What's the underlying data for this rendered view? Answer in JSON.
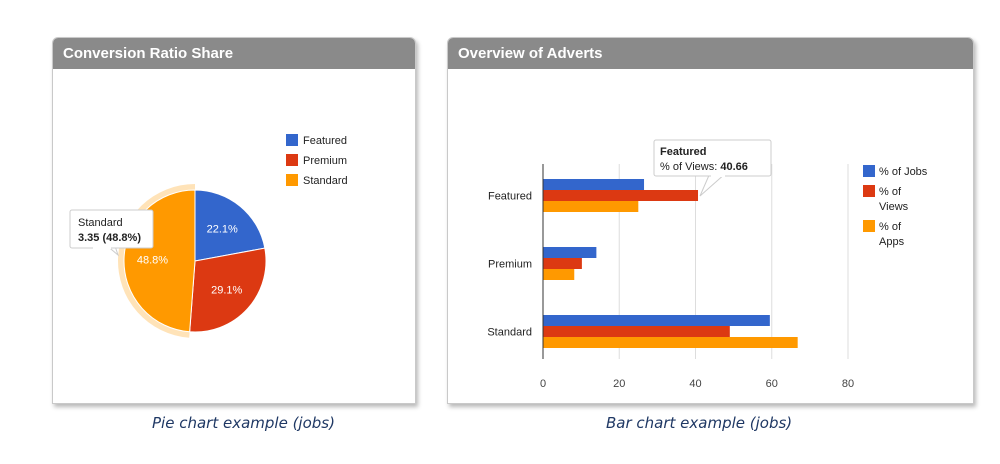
{
  "colors": {
    "featured": "#3366cc",
    "premium": "#dc3912",
    "standard": "#ff9900",
    "header": "#8a8a8a",
    "caption": "#1f3864"
  },
  "pie_panel": {
    "title": "Conversion Ratio Share",
    "caption": "Pie chart example (jobs)",
    "tooltip": {
      "label": "Standard",
      "value": "3.35 (48.8%)"
    }
  },
  "bar_panel": {
    "title": "Overview of Adverts",
    "caption": "Bar chart example (jobs)",
    "tooltip": {
      "label": "Featured",
      "metric": "% of Views: ",
      "value": "40.66"
    }
  },
  "chart_data": [
    {
      "type": "pie",
      "title": "Conversion Ratio Share",
      "categories": [
        "Featured",
        "Premium",
        "Standard"
      ],
      "values": [
        22.1,
        29.1,
        48.8
      ],
      "labels": [
        "22.1%",
        "29.1%",
        "48.8%"
      ],
      "highlighted": "Standard",
      "legend": {
        "position": "right",
        "entries": [
          "Featured",
          "Premium",
          "Standard"
        ]
      }
    },
    {
      "type": "bar",
      "orientation": "horizontal",
      "title": "Overview of Adverts",
      "categories": [
        "Featured",
        "Premium",
        "Standard"
      ],
      "series": [
        {
          "name": "% of Jobs",
          "values": [
            26.5,
            14,
            59.5
          ]
        },
        {
          "name": "% of Views",
          "values": [
            40.66,
            10.2,
            49
          ]
        },
        {
          "name": "% of Apps",
          "values": [
            25,
            8.2,
            66.8
          ]
        }
      ],
      "legend_entries": [
        [
          "% of Jobs"
        ],
        [
          "% of",
          "Views"
        ],
        [
          "% of",
          "Apps"
        ]
      ],
      "xlim": [
        0,
        80
      ],
      "x_ticks": [
        0,
        20,
        40,
        60,
        80
      ],
      "grid": true,
      "legend": {
        "position": "right"
      }
    }
  ]
}
